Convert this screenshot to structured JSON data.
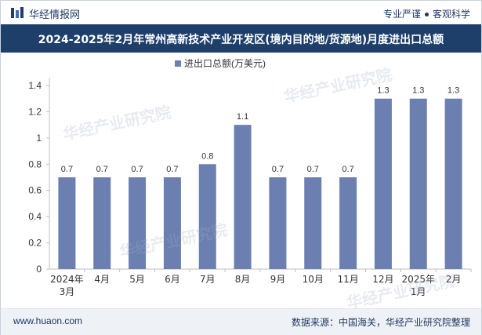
{
  "header": {
    "brand": "华经情报网",
    "tag1": "专业严谨",
    "tag2": "客观科学"
  },
  "title": "2024-2025年2月年常州高新技术产业开发区(境内目的地/货源地)月度进出口总额",
  "footer": {
    "url": "www.huaon.com",
    "source": "数据来源：中国海关，华经产业研究院整理"
  },
  "watermark": "华经产业研究院",
  "colors": {
    "bar": "#6b7fb0",
    "title_bg": "#1f3f6b",
    "brand": "#1f3864"
  },
  "chart_data": {
    "type": "bar",
    "categories": [
      "2024年\n3月",
      "4月",
      "5月",
      "6月",
      "7月",
      "8月",
      "9月",
      "10月",
      "11月",
      "12月",
      "2025年\n1月",
      "2月"
    ],
    "series": [
      {
        "name": "进出口总额(万美元)",
        "values": [
          0.7,
          0.7,
          0.7,
          0.7,
          0.8,
          1.1,
          0.7,
          0.7,
          0.7,
          1.3,
          1.3,
          1.3
        ]
      }
    ],
    "data_labels": [
      "0.7",
      "0.7",
      "0.7",
      "0.7",
      "0.8",
      "1.1",
      "0.7",
      "0.7",
      "0.7",
      "1.3",
      "1.3",
      "1.3"
    ],
    "y_ticks": [
      "0",
      "0.2",
      "0.4",
      "0.6",
      "0.8",
      "1",
      "1.2",
      "1.4"
    ],
    "ylim": [
      0,
      1.4
    ],
    "grid": false,
    "legend_position": "top-center"
  }
}
